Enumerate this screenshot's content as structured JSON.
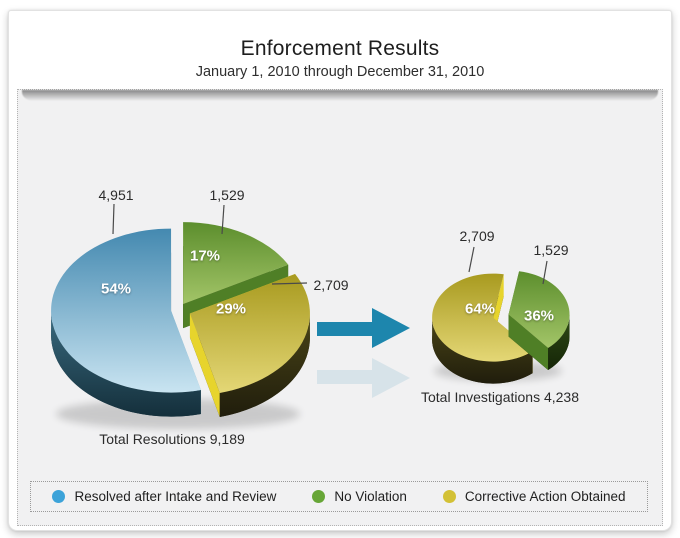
{
  "header": {
    "title": "Enforcement Results",
    "subtitle": "January 1, 2010 through December 31, 2010"
  },
  "colors": {
    "blue": {
      "base": "#3ca3d9",
      "top": [
        "#4489b0",
        "#c9e4f1"
      ],
      "side": [
        "#3a6b80",
        "#142f3b"
      ],
      "cut": "#7db6d0",
      "bottom": "#16323e"
    },
    "green": {
      "base": "#67a637",
      "top": [
        "#5c8e2d",
        "#a3c568"
      ],
      "side": [
        "#2f4b17",
        "#152507"
      ],
      "cut": "#4f7f26",
      "bottom": "#1a2c0c"
    },
    "yellow": {
      "base": "#d3c136",
      "top": [
        "#a89a1f",
        "#e4d776"
      ],
      "side": [
        "#4a4517",
        "#201d0c"
      ],
      "cut": "#e7d42c",
      "bottom": "#26220e"
    },
    "arrow": "#1d86ad",
    "leader_line": "#4a4a4a"
  },
  "chart_data": [
    {
      "type": "pie",
      "caption": "Total Resolutions 9,189",
      "total": 9189,
      "slices": [
        {
          "label": "Resolved after Intake and Review",
          "value": 4951,
          "value_label": "4,951",
          "pct": "54%",
          "pct_value": 54,
          "color_key": "blue"
        },
        {
          "label": "No Violation",
          "value": 1529,
          "value_label": "1,529",
          "pct": "17%",
          "pct_value": 17,
          "color_key": "green"
        },
        {
          "label": "Corrective Action Obtained",
          "value": 2709,
          "value_label": "2,709",
          "pct": "29%",
          "pct_value": 29,
          "color_key": "yellow"
        }
      ]
    },
    {
      "type": "pie",
      "caption": "Total Investigations 4,238",
      "total": 4238,
      "slices": [
        {
          "label": "No Violation",
          "value": 1529,
          "value_label": "1,529",
          "pct": "36%",
          "pct_value": 36,
          "color_key": "green"
        },
        {
          "label": "Corrective Action Obtained",
          "value": 2709,
          "value_label": "2,709",
          "pct": "64%",
          "pct_value": 64,
          "color_key": "yellow"
        }
      ]
    }
  ],
  "legend": {
    "items": [
      {
        "label": "Resolved after Intake and Review",
        "color_key": "blue"
      },
      {
        "label": "No Violation",
        "color_key": "green"
      },
      {
        "label": "Corrective Action Obtained",
        "color_key": "yellow"
      }
    ]
  }
}
